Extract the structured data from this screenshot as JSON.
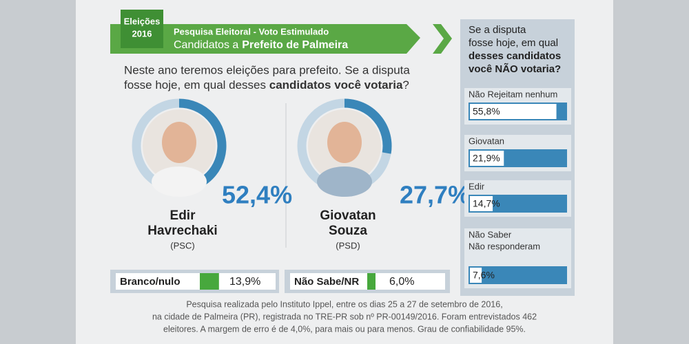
{
  "header": {
    "badge": [
      "Eleições",
      "2016"
    ],
    "line1": "Pesquisa Eleitoral  - Voto Estimulado",
    "line2": "Candidatos a",
    "line2_bold": "Prefeito de Palmeira"
  },
  "question": {
    "line1": "Neste ano teremos eleições para prefeito. Se a disputa",
    "line2": "fosse hoje, em qual desses ",
    "bold": "candidatos você votaria",
    "end": "?"
  },
  "candidates": [
    {
      "name": [
        "Edir",
        "Havrechaki"
      ],
      "party": "(PSC)",
      "value": 52.4,
      "value_label": "52,4%"
    },
    {
      "name": [
        "Giovatan",
        "Souza"
      ],
      "party": "(PSD)",
      "value": 27.7,
      "value_label": "27,7%"
    }
  ],
  "others": [
    {
      "label": "Branco/nulo",
      "value": 13.9,
      "value_label": "13,9%"
    },
    {
      "label": "Não Sabe/NR",
      "value": 6.0,
      "value_label": "6,0%"
    }
  ],
  "rejection": {
    "question": [
      "Se a disputa",
      "fosse hoje, em qual",
      "desses candidatos",
      "você NÃO votaria?"
    ],
    "items": [
      {
        "label": [
          "Não Rejeitam nenhum"
        ],
        "value": 55.8,
        "value_label": "55,8%"
      },
      {
        "label": [
          "Giovatan"
        ],
        "value": 21.9,
        "value_label": "21,9%"
      },
      {
        "label": [
          "Edir"
        ],
        "value": 14.7,
        "value_label": "14,7%"
      },
      {
        "label": [
          "Não Saber",
          "Não responderam"
        ],
        "value": 7.6,
        "value_label": "7,6%"
      }
    ]
  },
  "footnote": [
    "Pesquisa realizada pelo Instituto Ippel, entre os dias 25 a 27 de setembro de 2016,",
    "na cidade de Palmeira (PR), registrada no TRE-PR sob nº PR-00149/2016. Foram entrevistados 462",
    "eleitores. A margem de erro é de 4,0%, para mais ou para menos. Grau de confiabilidade 95%."
  ]
}
